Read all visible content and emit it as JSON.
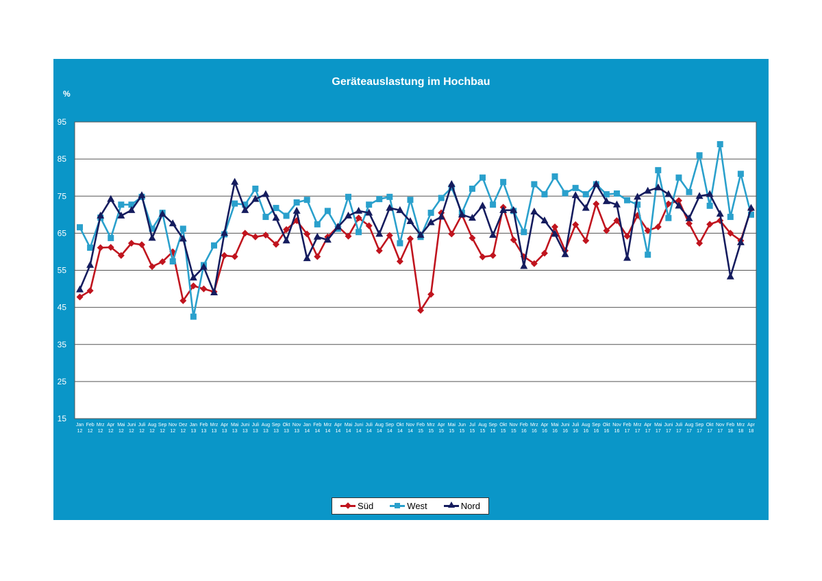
{
  "chart_data": {
    "type": "line",
    "title": "Geräteauslastung im Hochbau",
    "ylabel": "%",
    "xlabel": "",
    "ylim": [
      15,
      95
    ],
    "yticks": [
      "95",
      "85",
      "75",
      "65",
      "55",
      "45",
      "35",
      "25",
      "15"
    ],
    "grid": true,
    "legend": "bottom-center",
    "categories": [
      "Jan 12",
      "Feb 12",
      "Mrz 12",
      "Apr 12",
      "Mai 12",
      "Juni 12",
      "Juli 12",
      "Aug 12",
      "Sep 12",
      "Nov 12",
      "Dez 12",
      "Jan 13",
      "Feb 13",
      "Mrz 13",
      "Apr 13",
      "Mai 13",
      "Juni 13",
      "Juli 13",
      "Aug 13",
      "Sep 13",
      "Okt 13",
      "Nov 13",
      "Jan 14",
      "Feb 14",
      "Mrz 14",
      "Apr 14",
      "Mai 14",
      "Juni 14",
      "Juli 14",
      "Aug 14",
      "Sep 14",
      "Okt 14",
      "Nov 14",
      "Feb 15",
      "Mrz 15",
      "Apr 15",
      "Mai 15",
      "Jun 15",
      "Jul 15",
      "Aug 15",
      "Sep 15",
      "Okt 15",
      "Nov 15",
      "Feb 16",
      "Mrz 16",
      "Apr 16",
      "Mai 16",
      "Juni 16",
      "Juli 16",
      "Aug 16",
      "Sep 16",
      "Okt 16",
      "Nov 16",
      "Feb 17",
      "Mrz 17",
      "Apr 17",
      "Mai 17",
      "Juni 17",
      "Juli 17",
      "Aug 17",
      "Sep 17",
      "Okt 17",
      "Nov 17",
      "Feb 18",
      "Mrz 18",
      "Apr 18"
    ],
    "series": [
      {
        "name": "Süd",
        "color": "#c0141e",
        "marker": "diamond",
        "values": [
          47.8,
          49.5,
          61.1,
          61.2,
          59.0,
          62.3,
          61.9,
          56.0,
          57.3,
          60.0,
          46.8,
          50.8,
          50.0,
          49.2,
          59.0,
          58.7,
          65.0,
          64.0,
          64.5,
          62.0,
          66.0,
          68.4,
          64.8,
          58.7,
          64.0,
          66.8,
          64.2,
          69.1,
          67.0,
          60.3,
          64.4,
          57.4,
          63.5,
          44.2,
          48.5,
          70.5,
          64.8,
          70.0,
          63.7,
          58.6,
          59.0,
          72.0,
          63.2,
          58.7,
          56.8,
          59.6,
          66.7,
          60.3,
          67.3,
          63.0,
          72.9,
          65.7,
          68.4,
          64.2,
          69.8,
          65.7,
          66.7,
          72.9,
          73.8,
          67.6,
          62.3,
          67.4,
          68.4,
          65.0,
          63.0,
          71.5
        ]
      },
      {
        "name": "West",
        "color": "#2aa0cc",
        "marker": "square",
        "values": [
          66.6,
          61.1,
          69.2,
          63.7,
          72.7,
          72.7,
          74.8,
          66.2,
          70.5,
          57.4,
          66.2,
          42.5,
          56.4,
          61.7,
          64.7,
          73.0,
          72.7,
          77.0,
          69.4,
          71.8,
          69.7,
          73.3,
          74.0,
          67.4,
          71.0,
          66.2,
          74.8,
          65.3,
          72.7,
          74.2,
          74.8,
          62.3,
          74.0,
          64.0,
          70.5,
          74.5,
          77.3,
          70.5,
          77.0,
          80.0,
          72.7,
          78.8,
          71.0,
          65.3,
          78.2,
          75.5,
          80.3,
          75.8,
          77.2,
          75.5,
          78.2,
          75.5,
          75.7,
          73.9,
          72.7,
          59.2,
          82.0,
          69.1,
          80.0,
          76.1,
          86.0,
          72.4,
          89.0,
          69.4,
          81.0,
          70.0
        ]
      },
      {
        "name": "Nord",
        "color": "#151c5e",
        "marker": "triangle",
        "values": [
          49.8,
          56.4,
          69.7,
          74.2,
          69.7,
          71.2,
          75.2,
          63.7,
          70.2,
          67.6,
          63.5,
          53.0,
          55.9,
          49.0,
          65.0,
          78.8,
          71.2,
          74.2,
          75.5,
          69.1,
          63.0,
          71.0,
          58.2,
          64.0,
          63.2,
          66.7,
          69.7,
          71.0,
          70.5,
          64.8,
          71.8,
          71.2,
          68.2,
          64.5,
          67.9,
          69.4,
          78.2,
          70.0,
          69.1,
          72.4,
          64.5,
          71.2,
          71.2,
          56.1,
          70.8,
          68.4,
          64.8,
          59.3,
          75.2,
          71.8,
          78.2,
          73.6,
          72.7,
          58.3,
          74.8,
          76.4,
          77.3,
          75.5,
          72.4,
          69.0,
          75.0,
          75.5,
          70.2,
          53.3,
          62.5,
          71.8
        ]
      }
    ]
  }
}
